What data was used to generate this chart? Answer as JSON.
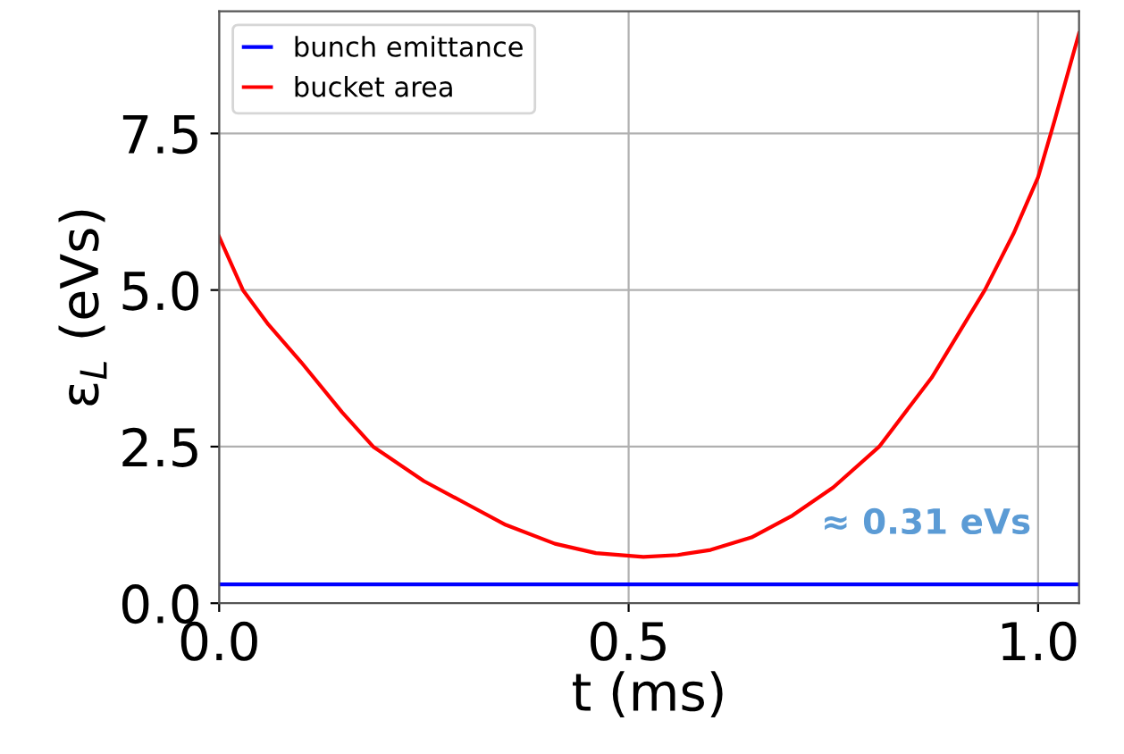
{
  "chart_data": {
    "type": "line",
    "xlabel": "t (ms)",
    "ylabel": "ε$_{L}$ (eVs)",
    "xlim": [
      0,
      1.05
    ],
    "xticks": [
      {
        "value": 0,
        "label": "0.0"
      },
      0.5,
      {
        "value": 1,
        "label": "1.0"
      }
    ],
    "ylim": [
      0,
      9.45
    ],
    "yticks": [
      {
        "value": 0,
        "label": "0.0"
      },
      2.5,
      {
        "value": 5,
        "label": "5.0"
      },
      7.5
    ],
    "grid": true,
    "legend": "top left",
    "marker": "none",
    "line_style": "solid",
    "series": [
      {
        "name": "bunch emittance",
        "color": "#0000ff",
        "x": [
          0,
          0.25,
          0.5,
          0.75,
          1.05
        ],
        "values": [
          0.3,
          0.3,
          0.3,
          0.3,
          0.3
        ]
      },
      {
        "name": "bucket area",
        "color": "#ff0000",
        "x": [
          0,
          0.029,
          0.06,
          0.1,
          0.15,
          0.188,
          0.25,
          0.3,
          0.35,
          0.41,
          0.46,
          0.518,
          0.56,
          0.6,
          0.65,
          0.7,
          0.75,
          0.806,
          0.87,
          0.935,
          0.97,
          1.0,
          1.02,
          1.05
        ],
        "values": [
          5.85,
          5.0,
          4.45,
          3.85,
          3.05,
          2.5,
          1.95,
          1.6,
          1.25,
          0.95,
          0.8,
          0.74,
          0.77,
          0.85,
          1.05,
          1.4,
          1.85,
          2.5,
          3.6,
          5.0,
          5.9,
          6.8,
          7.7,
          9.1
        ]
      }
    ],
    "annotations": [
      "≈ 0.31 eVs"
    ]
  }
}
